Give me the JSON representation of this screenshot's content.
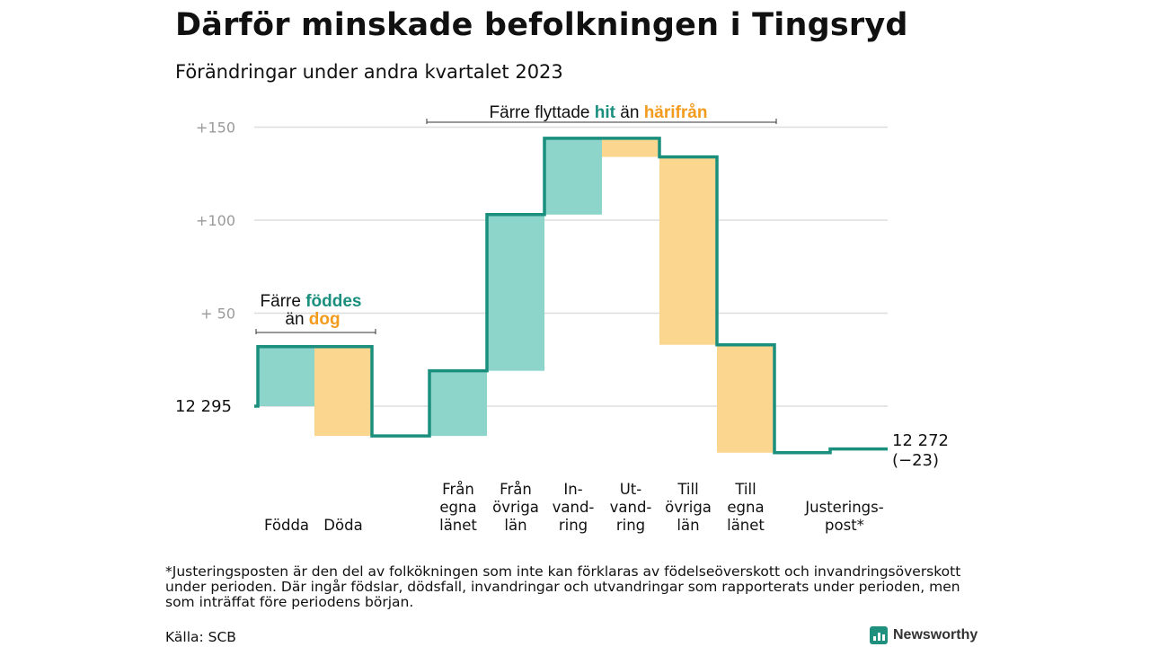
{
  "title": "Därför minskade befolkningen i Tingsryd",
  "subtitle": "Förändringar under andra kvartalet 2023",
  "annotations": {
    "births": {
      "line1_pre": "Färre ",
      "line1_hl": "föddes",
      "line2_pre": "än ",
      "line2_hl": "dog"
    },
    "moves": {
      "pre": "Färre flyttade ",
      "hl1": "hit",
      "mid": " än ",
      "hl2": "härifrån"
    }
  },
  "start_label": "12  295",
  "end_label": {
    "line1": "12 272",
    "line2": "(−23)"
  },
  "colors": {
    "in_fill": "#8dd5ca",
    "out_fill": "#fad68e",
    "step_line": "#1a8f7e",
    "highlight_in": "#1a8f7e",
    "highlight_out": "#f29b1d",
    "grid": "#dddddd"
  },
  "chart_data": {
    "type": "waterfall",
    "baseline": 12295,
    "y_tick_labels": [
      "+150",
      "+100",
      "+  50"
    ],
    "y_tick_values": [
      150,
      100,
      50
    ],
    "ylim": [
      -30,
      160
    ],
    "categories": [
      [
        "Födda"
      ],
      [
        "Döda"
      ],
      [
        "Från",
        "egna",
        "länet"
      ],
      [
        "Från",
        "övriga",
        "län"
      ],
      [
        "In-",
        "vand-",
        "ring"
      ],
      [
        "Ut-",
        "vand-",
        "ring"
      ],
      [
        "Till",
        "övriga",
        "län"
      ],
      [
        "Till",
        "egna",
        "länet"
      ],
      [
        "Justerings-",
        "post*"
      ]
    ],
    "changes": [
      32,
      -48,
      35,
      84,
      41,
      -10,
      -101,
      -58,
      2
    ],
    "levels_after": [
      32,
      -16,
      19,
      103,
      144,
      134,
      33,
      -25,
      -23
    ],
    "final_value": 12272,
    "net_change": -23
  },
  "footnote": "*Justeringsposten är den del av folkökningen som inte kan förklaras av födelseöverskott och invandringsöverskott under perioden. Där ingår födslar, dödsfall, invandringar och utvandringar som rapporterats under perioden, men som inträffat före periodens början.",
  "source": "Källa: SCB",
  "brand": "Newsworthy"
}
